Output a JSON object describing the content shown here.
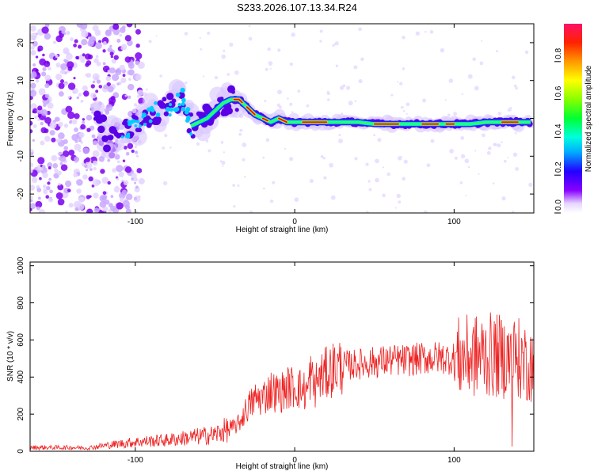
{
  "title": "S233.2026.107.13.34.R24",
  "chart_data": [
    {
      "type": "heatmap",
      "xlabel": "Height of straight line (km)",
      "ylabel": "Frequency (Hz)",
      "xlim": [
        -166,
        150
      ],
      "ylim": [
        -25,
        25
      ],
      "xticks": [
        -100,
        0,
        100
      ],
      "yticks": [
        -20,
        -10,
        0,
        10,
        20
      ],
      "grid": false,
      "ridge": {
        "x": [
          -120,
          -110,
          -100,
          -90,
          -80,
          -70,
          -65,
          -60,
          -55,
          -50,
          -45,
          -40,
          -35,
          -30,
          -25,
          -20,
          -15,
          -10,
          -5,
          0,
          5,
          10,
          20,
          30,
          40,
          50,
          60,
          70,
          80,
          90,
          100,
          110,
          120,
          130,
          140,
          148
        ],
        "y": [
          -6,
          -4,
          -2,
          1,
          3,
          5,
          -2,
          -1,
          0,
          2,
          4,
          5,
          5,
          3,
          1,
          0,
          -1,
          0,
          -1,
          -1,
          -1,
          -1,
          -1,
          -1,
          -1,
          -1.5,
          -1.5,
          -1.5,
          -1.5,
          -1.5,
          -1.5,
          -1.5,
          -1,
          -1,
          -1,
          -1
        ]
      },
      "colorbar": {
        "label": "Normalized spectral amplitude",
        "ticks": [
          "0.0",
          "0.2",
          "0.4",
          "0.6",
          "0.8"
        ],
        "range": [
          0,
          1
        ]
      }
    },
    {
      "type": "line",
      "xlabel": "Height of straight line (km)",
      "ylabel": "SNR (10 * v/v)",
      "xlim": [
        -166,
        150
      ],
      "ylim": [
        0,
        1020
      ],
      "xticks": [
        -100,
        0,
        100
      ],
      "yticks": [
        0,
        200,
        400,
        600,
        800,
        1000
      ],
      "color": "#ee2222",
      "series": [
        {
          "x": [
            -166,
            -150,
            -140,
            -130,
            -120,
            -110,
            -100,
            -90,
            -80,
            -70,
            -60,
            -50,
            -45,
            -40,
            -35,
            -30,
            -25,
            -20,
            -15,
            -10,
            -5,
            0,
            5,
            8,
            10,
            12,
            15,
            20,
            25,
            30,
            40,
            50,
            60,
            70,
            80,
            90,
            100,
            110,
            120,
            130,
            140,
            145,
            150
          ],
          "y": [
            20,
            20,
            20,
            18,
            30,
            40,
            50,
            55,
            60,
            70,
            80,
            90,
            110,
            120,
            150,
            230,
            280,
            290,
            330,
            310,
            340,
            350,
            330,
            320,
            420,
            340,
            390,
            420,
            450,
            460,
            470,
            480,
            490,
            490,
            500,
            505,
            500,
            510,
            520,
            510,
            500,
            480,
            470
          ]
        }
      ]
    }
  ]
}
